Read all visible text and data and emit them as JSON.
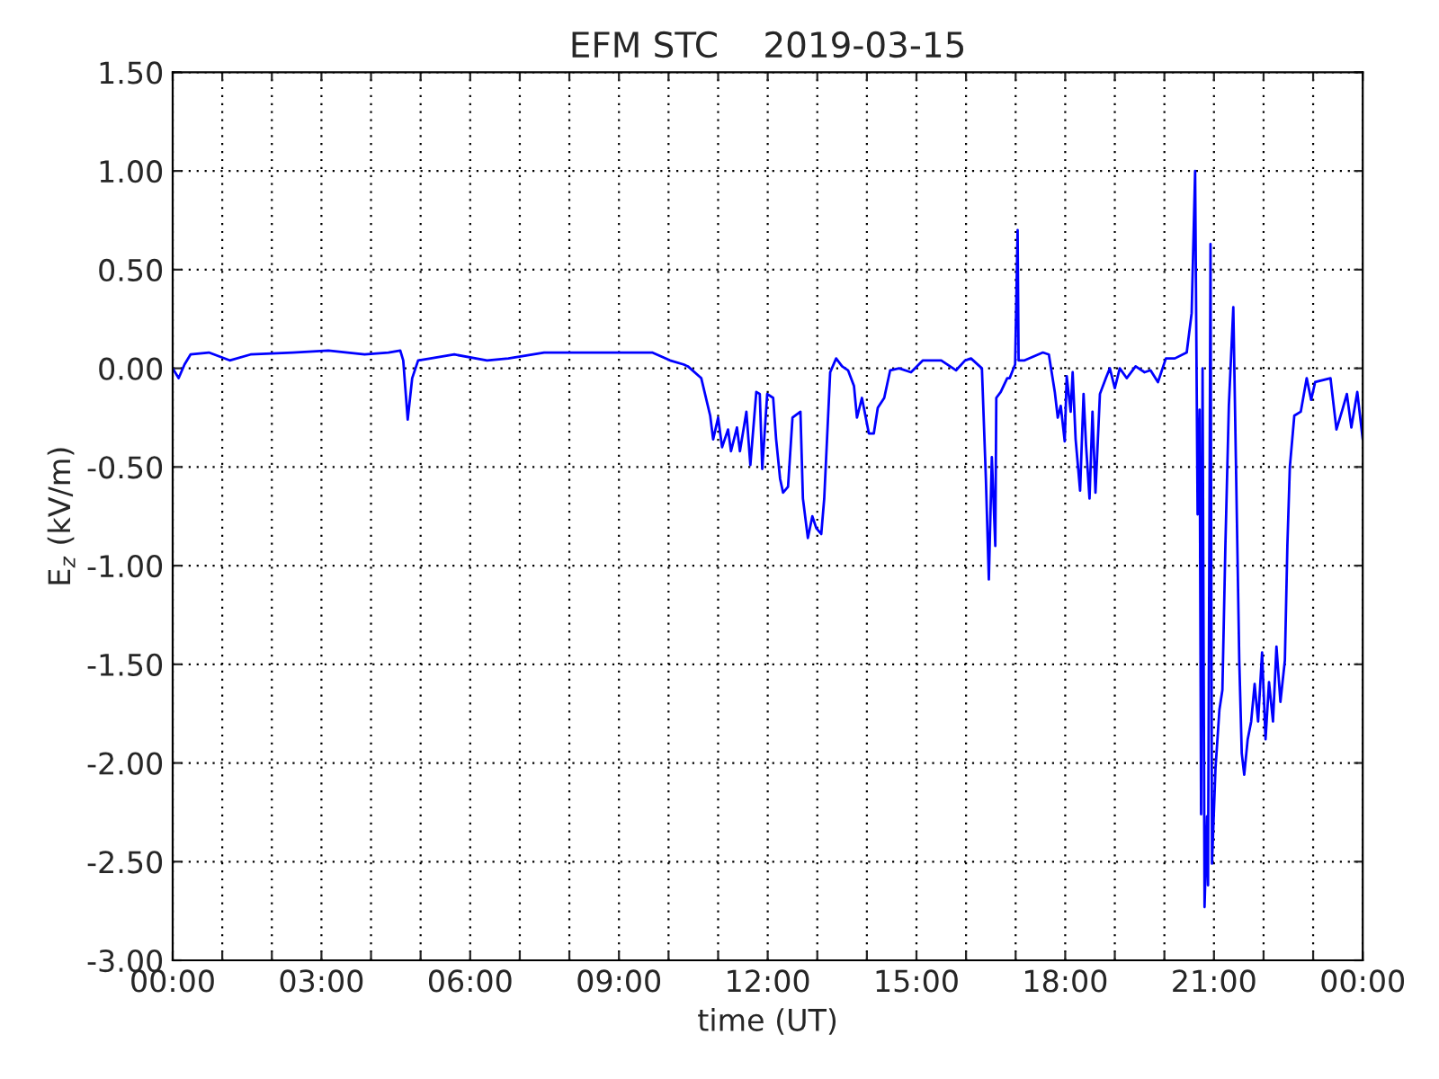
{
  "chart_data": {
    "type": "line",
    "title": "EFM STC    2019-03-15",
    "xlabel": "time (UT)",
    "ylabel": "E$_{z}$ (kV/m)",
    "xlim": [
      0,
      24
    ],
    "xticks": [
      {
        "value": 0,
        "label": "00:00"
      },
      {
        "value": 1,
        "label": null
      },
      {
        "value": 2,
        "label": null
      },
      {
        "value": 3,
        "label": "03:00"
      },
      {
        "value": 4,
        "label": null
      },
      {
        "value": 5,
        "label": null
      },
      {
        "value": 6,
        "label": "06:00"
      },
      {
        "value": 7,
        "label": null
      },
      {
        "value": 8,
        "label": null
      },
      {
        "value": 9,
        "label": "09:00"
      },
      {
        "value": 10,
        "label": null
      },
      {
        "value": 11,
        "label": null
      },
      {
        "value": 12,
        "label": "12:00"
      },
      {
        "value": 13,
        "label": null
      },
      {
        "value": 14,
        "label": null
      },
      {
        "value": 15,
        "label": "15:00"
      },
      {
        "value": 16,
        "label": null
      },
      {
        "value": 17,
        "label": null
      },
      {
        "value": 18,
        "label": "18:00"
      },
      {
        "value": 19,
        "label": null
      },
      {
        "value": 20,
        "label": null
      },
      {
        "value": 21,
        "label": "21:00"
      },
      {
        "value": 22,
        "label": null
      },
      {
        "value": 23,
        "label": null
      },
      {
        "value": 24,
        "label": "00:00"
      }
    ],
    "ylim": [
      -3.0,
      1.5
    ],
    "yticks": [
      {
        "value": -3.0,
        "label": "-3.00"
      },
      {
        "value": -2.5,
        "label": "-2.50"
      },
      {
        "value": -2.0,
        "label": "-2.00"
      },
      {
        "value": -1.5,
        "label": "-1.50"
      },
      {
        "value": -1.0,
        "label": "-1.00"
      },
      {
        "value": -0.5,
        "label": "-0.50"
      },
      {
        "value": 0.0,
        "label": "0.00"
      },
      {
        "value": 0.5,
        "label": "0.50"
      },
      {
        "value": 1.0,
        "label": "1.00"
      },
      {
        "value": 1.5,
        "label": "1.50"
      }
    ],
    "grid": true,
    "line_style": "solid",
    "marker": "none",
    "series": [
      {
        "color": "#0000ff",
        "x": [
          0,
          0.12,
          0.24,
          0.36,
          0.73,
          1.15,
          1.57,
          2.42,
          3.14,
          3.87,
          4.35,
          4.59,
          4.65,
          4.74,
          4.83,
          4.95,
          5.2,
          5.68,
          6.34,
          6.77,
          7.49,
          8.46,
          9.67,
          10.03,
          10.3,
          10.39,
          10.66,
          10.84,
          10.9,
          11.0,
          11.08,
          11.2,
          11.26,
          11.38,
          11.44,
          11.57,
          11.65,
          11.77,
          11.84,
          11.89,
          11.99,
          12.11,
          12.17,
          12.25,
          12.31,
          12.41,
          12.5,
          12.66,
          12.71,
          12.81,
          12.9,
          12.98,
          13.08,
          13.14,
          13.26,
          13.38,
          13.5,
          13.62,
          13.74,
          13.8,
          13.9,
          14.04,
          14.14,
          14.22,
          14.35,
          14.47,
          14.65,
          14.89,
          15.13,
          15.5,
          15.8,
          15.98,
          16.1,
          16.32,
          16.4,
          16.46,
          16.52,
          16.59,
          16.61,
          16.7,
          16.83,
          16.88,
          16.99,
          17.04,
          17.06,
          17.18,
          17.55,
          17.67,
          17.79,
          17.85,
          17.91,
          17.99,
          18.03,
          18.11,
          18.15,
          18.21,
          18.3,
          18.37,
          18.42,
          18.49,
          18.55,
          18.61,
          18.7,
          18.82,
          18.9,
          19.0,
          19.1,
          19.24,
          19.42,
          19.6,
          19.72,
          19.87,
          20.03,
          20.21,
          20.45,
          20.55,
          20.62,
          20.67,
          20.71,
          20.74,
          20.77,
          20.81,
          20.86,
          20.88,
          20.93,
          20.96,
          21.03,
          21.11,
          21.17,
          21.23,
          21.3,
          21.39,
          21.51,
          21.56,
          21.61,
          21.68,
          21.75,
          21.82,
          21.89,
          21.97,
          22.04,
          22.11,
          22.19,
          22.26,
          22.34,
          22.43,
          22.48,
          22.53,
          22.62,
          22.75,
          22.87,
          22.96,
          23.04,
          23.35,
          23.47,
          23.59,
          23.68,
          23.77,
          23.89,
          24.0
        ],
        "values": [
          0,
          -0.05,
          0.02,
          0.07,
          0.08,
          0.04,
          0.07,
          0.08,
          0.09,
          0.07,
          0.08,
          0.09,
          0.04,
          -0.26,
          -0.05,
          0.04,
          0.05,
          0.07,
          0.04,
          0.05,
          0.08,
          0.08,
          0.08,
          0.04,
          0.02,
          0.01,
          -0.05,
          -0.24,
          -0.36,
          -0.25,
          -0.4,
          -0.31,
          -0.42,
          -0.3,
          -0.42,
          -0.22,
          -0.49,
          -0.12,
          -0.13,
          -0.51,
          -0.13,
          -0.15,
          -0.36,
          -0.56,
          -0.63,
          -0.6,
          -0.25,
          -0.22,
          -0.66,
          -0.86,
          -0.75,
          -0.81,
          -0.84,
          -0.66,
          -0.02,
          0.05,
          0.01,
          -0.01,
          -0.09,
          -0.25,
          -0.15,
          -0.33,
          -0.33,
          -0.2,
          -0.15,
          -0.01,
          0.0,
          -0.02,
          0.04,
          0.04,
          -0.01,
          0.04,
          0.05,
          0.0,
          -0.56,
          -1.07,
          -0.45,
          -0.9,
          -0.15,
          -0.12,
          -0.05,
          -0.05,
          0.02,
          0.7,
          0.04,
          0.04,
          0.08,
          0.07,
          -0.12,
          -0.25,
          -0.19,
          -0.37,
          -0.04,
          -0.22,
          -0.02,
          -0.36,
          -0.62,
          -0.13,
          -0.39,
          -0.66,
          -0.22,
          -0.63,
          -0.13,
          -0.05,
          0.0,
          -0.1,
          0.0,
          -0.05,
          0.01,
          -0.02,
          -0.01,
          -0.07,
          0.05,
          0.05,
          0.08,
          0.28,
          1.0,
          -0.74,
          -0.21,
          -2.26,
          0.0,
          -2.73,
          -2.27,
          -2.62,
          0.63,
          -2.51,
          -2.03,
          -1.73,
          -1.63,
          -0.9,
          -0.19,
          0.31,
          -1.48,
          -1.95,
          -2.06,
          -1.88,
          -1.79,
          -1.6,
          -1.79,
          -1.44,
          -1.88,
          -1.59,
          -1.79,
          -1.41,
          -1.69,
          -1.48,
          -0.9,
          -0.5,
          -0.24,
          -0.22,
          -0.05,
          -0.16,
          -0.07,
          -0.05,
          -0.31,
          -0.21,
          -0.13,
          -0.3,
          -0.12,
          -0.36
        ]
      }
    ]
  }
}
